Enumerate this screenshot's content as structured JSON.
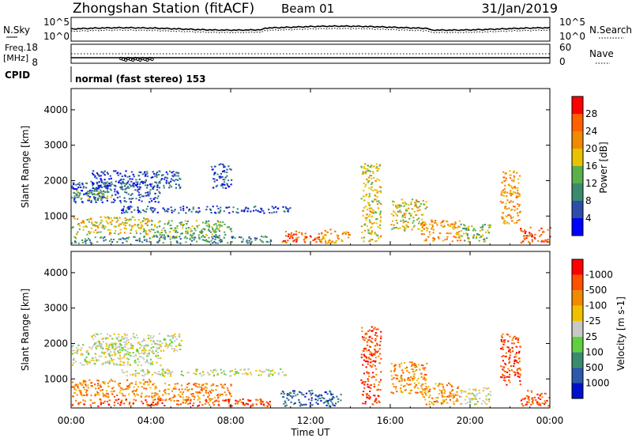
{
  "header": {
    "station": "Zhongshan Station (fitACF)",
    "beam": "Beam 01",
    "date": "31/Jan/2019",
    "cpid_label": "CPID",
    "cpid_value": "normal (fast stereo) 153"
  },
  "noise_panel": {
    "left_label": "N.Sky",
    "right_label": "N.Search",
    "left_ticks": [
      "10^5",
      "10^0"
    ],
    "right_ticks": [
      "10^5",
      "10^0"
    ]
  },
  "freq_panel": {
    "left_label_1": "Freq.",
    "left_label_2": "[MHz]",
    "right_label": "Nave",
    "left_ticks": [
      "18",
      "8"
    ],
    "right_ticks": [
      "60",
      "0"
    ]
  },
  "time_axis": {
    "label": "Time UT",
    "ticks": [
      "00:00",
      "04:00",
      "08:00",
      "12:00",
      "16:00",
      "20:00",
      "00:00"
    ]
  },
  "chart_data": [
    {
      "type": "heatmap",
      "name": "power",
      "ylabel": "Slant Range [km]",
      "xlabel": "Time UT",
      "y_ticks": [
        1000,
        2000,
        3000,
        4000
      ],
      "ylim": [
        180,
        4600
      ],
      "xlim": [
        0,
        24
      ],
      "colorbar_label": "Power [dB]",
      "colorbar_ticks": [
        "4",
        "8",
        "12",
        "16",
        "20",
        "24",
        "28"
      ],
      "colorbar_colors": [
        "#0000ff",
        "#2c4ea8",
        "#3a8a6e",
        "#5ab04a",
        "#e8c200",
        "#f08a00",
        "#ff6000",
        "#ff0000"
      ],
      "regions": [
        {
          "t0": 0.0,
          "t1": 4.5,
          "r0": 1400,
          "r1": 2000,
          "level": 1
        },
        {
          "t0": 0.0,
          "t1": 2.0,
          "r0": 1500,
          "r1": 1750,
          "level": 3
        },
        {
          "t0": 1.0,
          "t1": 5.5,
          "r0": 1800,
          "r1": 2300,
          "level": 1
        },
        {
          "t0": 2.5,
          "t1": 11.0,
          "r0": 1100,
          "r1": 1300,
          "level": 1
        },
        {
          "t0": 0.0,
          "t1": 4.0,
          "r0": 500,
          "r1": 1000,
          "level": 4
        },
        {
          "t0": 4.0,
          "t1": 8.0,
          "r0": 400,
          "r1": 900,
          "level": 3
        },
        {
          "t0": 0.0,
          "t1": 10.0,
          "r0": 250,
          "r1": 450,
          "level": 2
        },
        {
          "t0": 7.0,
          "t1": 8.0,
          "r0": 1800,
          "r1": 2500,
          "level": 1
        },
        {
          "t0": 10.5,
          "t1": 12.5,
          "r0": 250,
          "r1": 600,
          "level": 6
        },
        {
          "t0": 12.5,
          "t1": 14.0,
          "r0": 250,
          "r1": 650,
          "level": 5
        },
        {
          "t0": 14.5,
          "t1": 15.5,
          "r0": 300,
          "r1": 2500,
          "level": 4
        },
        {
          "t0": 16.0,
          "t1": 17.8,
          "r0": 600,
          "r1": 1500,
          "level": 4
        },
        {
          "t0": 17.5,
          "t1": 19.5,
          "r0": 300,
          "r1": 900,
          "level": 5
        },
        {
          "t0": 19.5,
          "t1": 21.0,
          "r0": 300,
          "r1": 800,
          "level": 3
        },
        {
          "t0": 21.5,
          "t1": 22.5,
          "r0": 800,
          "r1": 2300,
          "level": 5
        },
        {
          "t0": 22.5,
          "t1": 24.0,
          "r0": 250,
          "r1": 700,
          "level": 6
        }
      ]
    },
    {
      "type": "heatmap",
      "name": "velocity",
      "ylabel": "Slant Range [km]",
      "xlabel": "Time UT",
      "y_ticks": [
        1000,
        2000,
        3000,
        4000
      ],
      "ylim": [
        180,
        4600
      ],
      "xlim": [
        0,
        24
      ],
      "colorbar_label": "Velocity [m s-1]",
      "colorbar_ticks": [
        "1000",
        "500",
        "100",
        "25",
        "-25",
        "-100",
        "-500",
        "-1000"
      ],
      "colorbar_colors": [
        "#0010c8",
        "#2c5aa8",
        "#3a8a6e",
        "#60d040",
        "#c8c8c8",
        "#f0c000",
        "#f08a00",
        "#ff5000",
        "#ff0000"
      ],
      "regions": [
        {
          "t0": 0.0,
          "t1": 4.5,
          "r0": 1400,
          "r1": 2000,
          "level": 4
        },
        {
          "t0": 1.0,
          "t1": 5.5,
          "r0": 1800,
          "r1": 2300,
          "level": 4
        },
        {
          "t0": 2.5,
          "t1": 11.0,
          "r0": 1100,
          "r1": 1300,
          "level": 4
        },
        {
          "t0": 0.0,
          "t1": 4.0,
          "r0": 500,
          "r1": 1000,
          "level": 6
        },
        {
          "t0": 4.0,
          "t1": 8.0,
          "r0": 400,
          "r1": 900,
          "level": 6
        },
        {
          "t0": 0.0,
          "t1": 10.0,
          "r0": 250,
          "r1": 450,
          "level": 7
        },
        {
          "t0": 10.5,
          "t1": 13.5,
          "r0": 250,
          "r1": 700,
          "level": 1
        },
        {
          "t0": 14.5,
          "t1": 15.5,
          "r0": 300,
          "r1": 2500,
          "level": 7
        },
        {
          "t0": 16.0,
          "t1": 17.8,
          "r0": 600,
          "r1": 1500,
          "level": 6
        },
        {
          "t0": 17.5,
          "t1": 19.5,
          "r0": 300,
          "r1": 900,
          "level": 6
        },
        {
          "t0": 19.5,
          "t1": 21.0,
          "r0": 300,
          "r1": 800,
          "level": 4
        },
        {
          "t0": 21.5,
          "t1": 22.5,
          "r0": 800,
          "r1": 2300,
          "level": 7
        },
        {
          "t0": 22.5,
          "t1": 24.0,
          "r0": 250,
          "r1": 700,
          "level": 7
        }
      ]
    }
  ]
}
